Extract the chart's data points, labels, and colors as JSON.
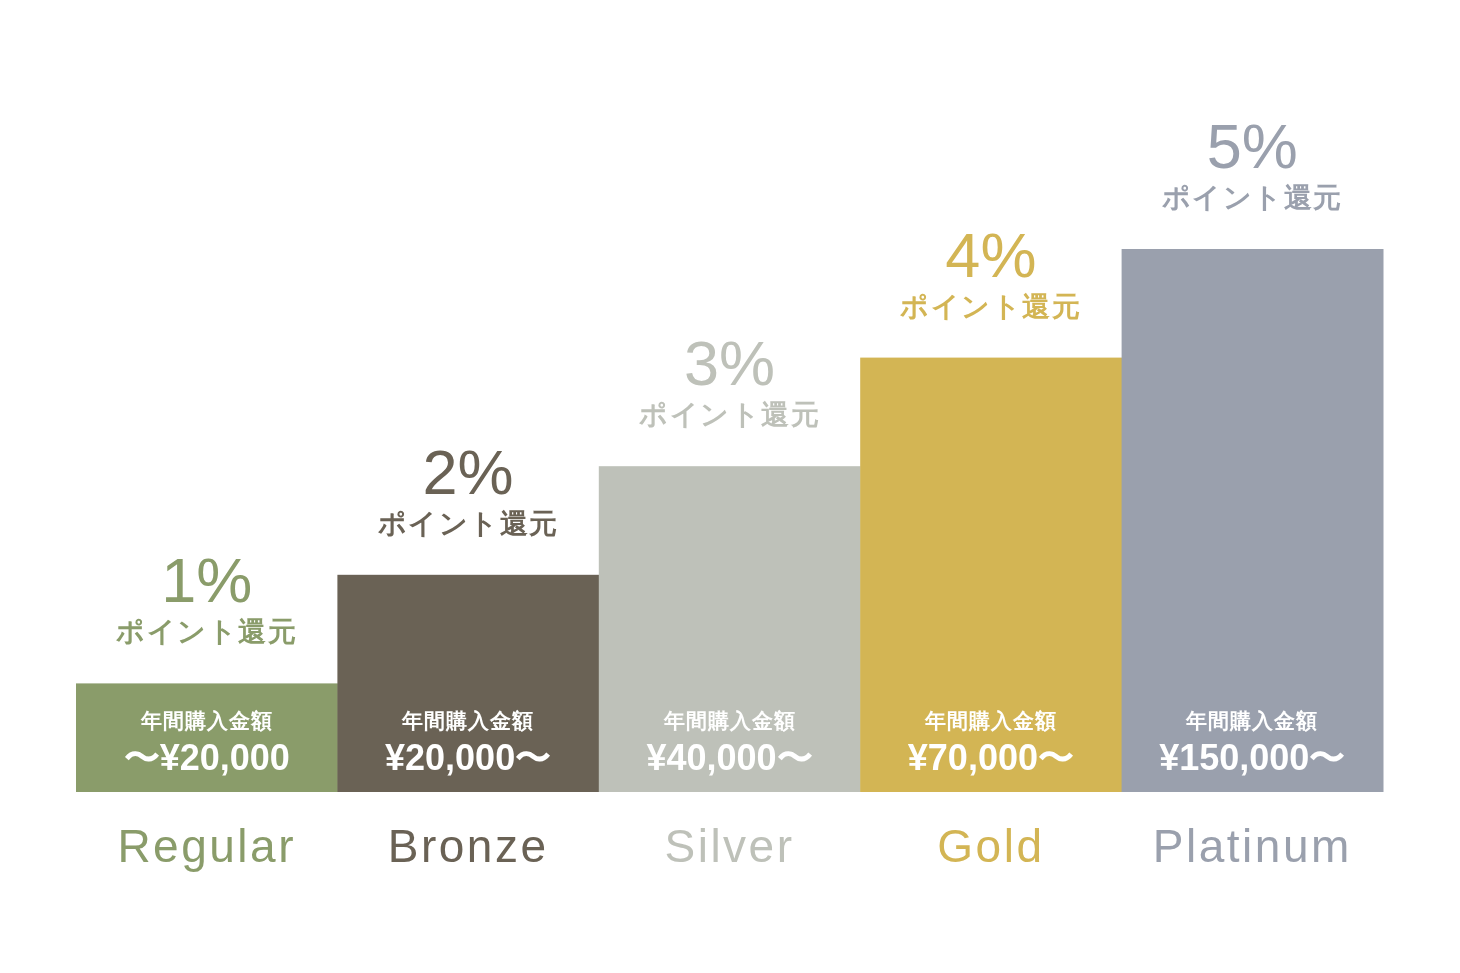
{
  "chart_data": {
    "type": "bar",
    "categories": [
      "Regular",
      "Bronze",
      "Silver",
      "Gold",
      "Platinum"
    ],
    "values": [
      1,
      2,
      3,
      4,
      5
    ],
    "colors": [
      "#8a9c6a",
      "#6a6255",
      "#bec1b9",
      "#d3b554",
      "#9aa0ad"
    ],
    "value_labels": [
      "1%",
      "2%",
      "3%",
      "4%",
      "5%"
    ],
    "annotations": [
      {
        "text": "ポイント還元",
        "x": "Regular",
        "y": 1
      },
      {
        "text": "ポイント還元",
        "x": "Bronze",
        "y": 2
      },
      {
        "text": "ポイント還元",
        "x": "Silver",
        "y": 3
      },
      {
        "text": "ポイント還元",
        "x": "Gold",
        "y": 4
      },
      {
        "text": "ポイント還元",
        "x": "Platinum",
        "y": 5
      },
      "年間購入金額",
      "〜¥20,000",
      "年間購入金額",
      "¥20,000〜",
      "年間購入金額",
      "¥40,000〜",
      "年間購入金額",
      "¥70,000〜",
      "年間購入金額",
      "¥150,000〜"
    ]
  }
}
